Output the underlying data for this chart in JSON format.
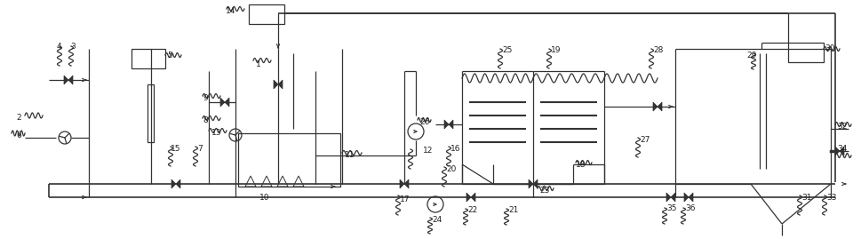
{
  "figsize": [
    9.7,
    2.69
  ],
  "dpi": 100,
  "bg_color": "#ffffff",
  "line_color": "#333333",
  "lw": 0.9
}
